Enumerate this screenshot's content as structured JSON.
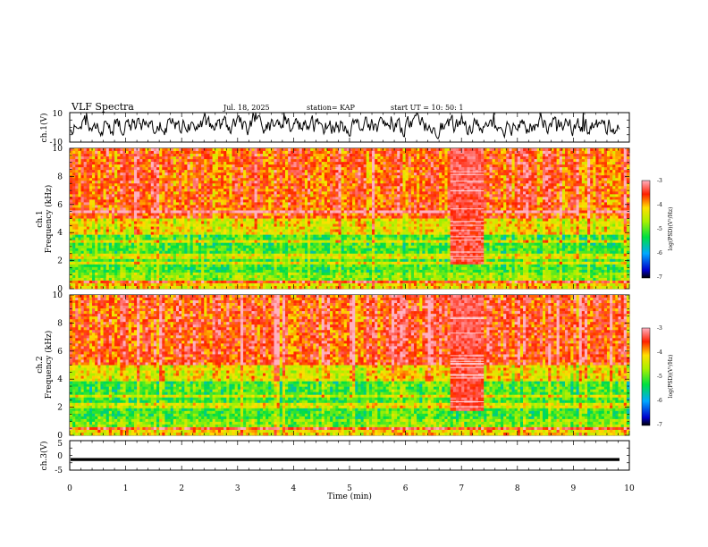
{
  "header": {
    "title": "VLF Spectra",
    "date": "Jul. 18, 2025",
    "station": "station= KAP",
    "start": "start UT =  10: 50: 1"
  },
  "chart_data": [
    {
      "type": "line",
      "panel": "ch1-waveform",
      "ylabel": "ch.1(V)",
      "ylim": [
        -10,
        10
      ],
      "yticks": [
        "10",
        "-10"
      ],
      "xlim": [
        0,
        10
      ],
      "note": "noisy broadband waveform, roughly between -6 V and +9 V"
    },
    {
      "type": "heatmap",
      "panel": "ch1-spectrogram",
      "ylabel_top": "ch.1",
      "ylabel": "Frequency (kHz)",
      "ylim": [
        0,
        10
      ],
      "yticks": [
        "0",
        "2",
        "4",
        "6",
        "8",
        "10"
      ],
      "xlim": [
        0,
        10
      ],
      "colorbar": {
        "label": "log(PSD)(V²/Hz)",
        "ticks": [
          "-3",
          "-4",
          "-5",
          "-6",
          "-7"
        ],
        "range": [
          -7,
          -3
        ]
      },
      "features": {
        "narrowband_lines_khz": [
          0.5,
          1.8,
          2.3,
          3.4,
          5.5
        ],
        "burst_interval_min": [
          6.8,
          7.4
        ]
      }
    },
    {
      "type": "heatmap",
      "panel": "ch2-spectrogram",
      "ylabel_top": "ch.2",
      "ylabel": "Frequency (kHz)",
      "ylim": [
        0,
        10
      ],
      "yticks": [
        "0",
        "2",
        "4",
        "6",
        "8",
        "10"
      ],
      "xlim": [
        0,
        10
      ],
      "colorbar": {
        "label": "log(PSD)(V²/Hz)",
        "ticks": [
          "-3",
          "-4",
          "-5",
          "-6",
          "-7"
        ],
        "range": [
          -7,
          -3
        ]
      },
      "features": {
        "narrowband_lines_khz": [
          0.5,
          2.1,
          2.8
        ],
        "burst_interval_min": [
          6.8,
          7.4
        ]
      }
    },
    {
      "type": "line",
      "panel": "ch3-waveform",
      "ylabel": "ch.3(V)",
      "ylim": [
        -5,
        5
      ],
      "yticks": [
        "5",
        "0",
        "-5"
      ],
      "xlim": [
        0,
        10
      ],
      "xlabel": "Time (min)",
      "xticks": [
        "0",
        "1",
        "2",
        "3",
        "4",
        "5",
        "6",
        "7",
        "8",
        "9",
        "10"
      ],
      "note": "thick near-constant trace around -1.4 V"
    }
  ]
}
